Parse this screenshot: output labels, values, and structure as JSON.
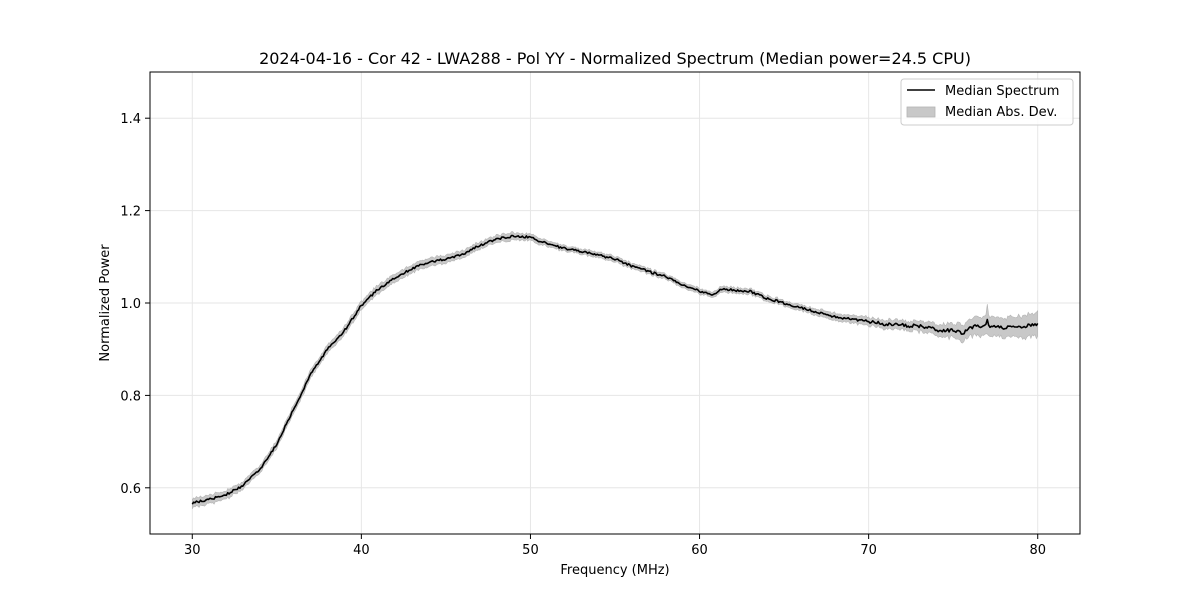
{
  "chart_data": {
    "type": "line",
    "title": "2024-04-16 - Cor 42 - LWA288 - Pol YY - Normalized Spectrum (Median power=24.5 CPU)",
    "xlabel": "Frequency (MHz)",
    "ylabel": "Normalized Power",
    "xlim": [
      27.5,
      82.5
    ],
    "ylim": [
      0.5,
      1.5
    ],
    "xticks": [
      30,
      40,
      50,
      60,
      70,
      80
    ],
    "yticks": [
      0.6,
      0.8,
      1.0,
      1.2,
      1.4
    ],
    "xtick_labels": [
      "30",
      "40",
      "50",
      "60",
      "70",
      "80"
    ],
    "ytick_labels": [
      "0.6",
      "0.8",
      "1.0",
      "1.2",
      "1.4"
    ],
    "grid": true,
    "legend": {
      "position": "top-right",
      "entries": [
        "Median Spectrum",
        "Median Abs. Dev."
      ]
    },
    "series": [
      {
        "name": "Median Spectrum",
        "color": "#000000",
        "x": [
          30,
          31,
          32,
          33,
          34,
          35,
          36,
          37,
          38,
          39,
          40,
          41,
          42,
          43,
          44,
          45,
          46,
          47,
          48,
          49,
          50,
          51,
          52,
          53,
          54,
          55,
          56,
          57,
          58,
          59,
          60,
          60.8,
          61.3,
          62,
          63,
          64,
          65,
          66,
          67,
          68,
          69,
          70,
          71,
          72,
          73,
          74,
          75,
          75.6,
          76,
          77,
          78,
          79,
          80
        ],
        "values": [
          0.567,
          0.575,
          0.585,
          0.605,
          0.64,
          0.695,
          0.77,
          0.845,
          0.9,
          0.94,
          0.995,
          1.03,
          1.055,
          1.075,
          1.088,
          1.095,
          1.105,
          1.125,
          1.138,
          1.145,
          1.142,
          1.128,
          1.118,
          1.112,
          1.104,
          1.095,
          1.08,
          1.068,
          1.057,
          1.04,
          1.026,
          1.018,
          1.03,
          1.028,
          1.025,
          1.01,
          1.0,
          0.99,
          0.98,
          0.97,
          0.965,
          0.96,
          0.955,
          0.952,
          0.95,
          0.942,
          0.94,
          0.935,
          0.948,
          0.95,
          0.945,
          0.95,
          0.952
        ]
      },
      {
        "name": "Median Abs. Dev.",
        "color": "#c8c8c8",
        "x": [
          30,
          32,
          34,
          36,
          38,
          40,
          42,
          44,
          46,
          48,
          50,
          52,
          55,
          58,
          60,
          62,
          65,
          68,
          70,
          72,
          74,
          76,
          77,
          78,
          80
        ],
        "mad": [
          0.01,
          0.009,
          0.008,
          0.009,
          0.009,
          0.009,
          0.009,
          0.009,
          0.008,
          0.008,
          0.007,
          0.006,
          0.006,
          0.006,
          0.006,
          0.006,
          0.006,
          0.008,
          0.009,
          0.01,
          0.013,
          0.018,
          0.022,
          0.02,
          0.027
        ]
      }
    ]
  }
}
